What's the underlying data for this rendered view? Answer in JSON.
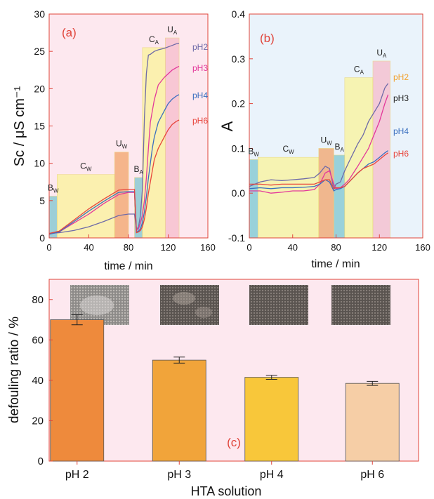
{
  "colors": {
    "panel_a_bg": "#fde8ef",
    "panel_b_bg": "#eaf3fb",
    "panel_c_bg": "#fde8ef",
    "frame": "#e0443a",
    "panel_label": "#e0443a",
    "stage_bw": "#7ec6cf",
    "stage_cw": "#fbf39a",
    "stage_uw": "#f3a46a",
    "stage_ba": "#7ec6cf",
    "stage_ca": "#fbf39a",
    "stage_ua": "#f7bccb",
    "ph2": "#6e6aa8",
    "ph3": "#e3389a",
    "ph4": "#3a6fbf",
    "ph6": "#e8453c",
    "ph2_label_b": "#f2a12e",
    "bar_ph2": "#ee8a3c",
    "bar_ph3": "#f1a43a",
    "bar_ph4": "#f8c73a",
    "bar_ph6": "#f6cea6"
  },
  "chart_data": [
    {
      "panel": "(a)",
      "type": "line",
      "ylabel": "Sc / μS cm⁻¹",
      "xlabel": "time / min",
      "xlim": [
        0,
        160
      ],
      "ylim": [
        0,
        30
      ],
      "xticks": [
        "0",
        "40",
        "80",
        "120",
        "160"
      ],
      "yticks": [
        "0",
        "5",
        "10",
        "15",
        "20",
        "25",
        "30"
      ],
      "stages": [
        {
          "label": "BW",
          "base": "B",
          "sub": "W",
          "x": [
            0,
            8
          ],
          "top": 5.6
        },
        {
          "label": "CW",
          "base": "C",
          "sub": "W",
          "x": [
            8,
            66
          ],
          "top": 8.5
        },
        {
          "label": "UW",
          "base": "U",
          "sub": "W",
          "x": [
            66,
            80
          ],
          "top": 11.5
        },
        {
          "label": "BA",
          "base": "B",
          "sub": "A",
          "x": [
            86,
            94
          ],
          "top": 8.1
        },
        {
          "label": "CA",
          "base": "C",
          "sub": "A",
          "x": [
            94,
            117
          ],
          "top": 25.5
        },
        {
          "label": "UA",
          "base": "U",
          "sub": "A",
          "x": [
            117,
            131
          ],
          "top": 26.8
        }
      ],
      "series": [
        {
          "name": "pH2",
          "x": [
            0,
            10,
            25,
            40,
            55,
            70,
            80,
            86,
            88,
            90,
            92,
            94,
            96,
            98,
            100,
            102,
            104,
            106,
            110,
            116,
            120,
            124,
            128,
            131
          ],
          "values": [
            0.6,
            0.7,
            1.0,
            1.5,
            2.2,
            3.0,
            3.2,
            3.2,
            1.2,
            1.4,
            3.0,
            6.5,
            16.0,
            22.0,
            24.5,
            24.6,
            24.8,
            25.0,
            25.2,
            25.4,
            25.6,
            25.8,
            26.0,
            26.1
          ]
        },
        {
          "name": "pH3",
          "x": [
            0,
            10,
            25,
            40,
            55,
            70,
            80,
            86,
            88,
            90,
            92,
            94,
            96,
            98,
            100,
            102,
            104,
            106,
            110,
            116,
            120,
            124,
            128,
            131
          ],
          "values": [
            0.5,
            0.8,
            2.0,
            3.2,
            4.6,
            5.8,
            6.1,
            6.1,
            1.0,
            1.2,
            2.0,
            3.0,
            5.0,
            8.0,
            12.0,
            15.5,
            17.0,
            18.5,
            20.5,
            21.5,
            22.0,
            22.5,
            22.8,
            23.0
          ]
        },
        {
          "name": "pH4",
          "x": [
            0,
            10,
            25,
            40,
            55,
            70,
            80,
            86,
            88,
            90,
            92,
            94,
            96,
            98,
            100,
            102,
            104,
            106,
            110,
            116,
            120,
            124,
            128,
            131
          ],
          "values": [
            0.5,
            0.8,
            2.2,
            3.6,
            4.9,
            6.1,
            6.2,
            6.2,
            0.8,
            0.9,
            1.2,
            2.0,
            3.5,
            5.5,
            8.0,
            10.0,
            12.0,
            13.5,
            15.5,
            17.0,
            18.0,
            18.6,
            19.0,
            19.2
          ]
        },
        {
          "name": "pH6",
          "x": [
            0,
            10,
            25,
            40,
            55,
            70,
            80,
            86,
            88,
            90,
            92,
            94,
            96,
            98,
            100,
            102,
            104,
            106,
            110,
            116,
            120,
            124,
            128,
            131
          ],
          "values": [
            0.6,
            0.9,
            2.4,
            3.9,
            5.2,
            6.4,
            6.5,
            6.5,
            0.7,
            0.8,
            1.0,
            1.5,
            2.5,
            4.0,
            6.0,
            7.5,
            9.0,
            10.5,
            12.0,
            13.5,
            14.5,
            15.2,
            15.6,
            15.8
          ]
        }
      ]
    },
    {
      "panel": "(b)",
      "type": "line",
      "ylabel": "A",
      "xlabel": "time / min",
      "xlim": [
        0,
        160
      ],
      "ylim": [
        -0.1,
        0.4
      ],
      "xticks": [
        "0",
        "40",
        "80",
        "120",
        "160"
      ],
      "yticks": [
        "-0.1",
        "0.0",
        "0.1",
        "0.2",
        "0.3",
        "0.4"
      ],
      "stages": [
        {
          "label": "BW",
          "base": "B",
          "sub": "W",
          "x": [
            0,
            8
          ],
          "top": 0.075
        },
        {
          "label": "CW",
          "base": "C",
          "sub": "W",
          "x": [
            8,
            64
          ],
          "top": 0.08
        },
        {
          "label": "UW",
          "base": "U",
          "sub": "W",
          "x": [
            64,
            78
          ],
          "top": 0.1
        },
        {
          "label": "BA",
          "base": "B",
          "sub": "A",
          "x": [
            78,
            88
          ],
          "top": 0.085
        },
        {
          "label": "CA",
          "base": "C",
          "sub": "A",
          "x": [
            88,
            114
          ],
          "top": 0.258
        },
        {
          "label": "UA",
          "base": "U",
          "sub": "A",
          "x": [
            114,
            130
          ],
          "top": 0.295
        }
      ],
      "series": [
        {
          "name": "pH2",
          "x": [
            0,
            10,
            20,
            30,
            40,
            50,
            60,
            65,
            70,
            74,
            78,
            80,
            84,
            88,
            92,
            96,
            100,
            105,
            110,
            115,
            120,
            125,
            128
          ],
          "values": [
            0.015,
            0.025,
            0.03,
            0.028,
            0.03,
            0.032,
            0.035,
            0.045,
            0.06,
            0.055,
            0.01,
            0.02,
            0.025,
            0.05,
            0.07,
            0.09,
            0.11,
            0.13,
            0.16,
            0.18,
            0.2,
            0.235,
            0.245
          ]
        },
        {
          "name": "pH3",
          "x": [
            0,
            10,
            20,
            30,
            40,
            50,
            60,
            65,
            70,
            74,
            78,
            80,
            84,
            88,
            92,
            96,
            100,
            105,
            110,
            115,
            120,
            125,
            128
          ],
          "values": [
            0.005,
            0.005,
            0.0,
            0.002,
            0.005,
            0.005,
            0.008,
            0.02,
            0.045,
            0.05,
            0.02,
            0.01,
            0.012,
            0.02,
            0.03,
            0.045,
            0.06,
            0.08,
            0.1,
            0.13,
            0.16,
            0.2,
            0.22
          ]
        },
        {
          "name": "pH4",
          "x": [
            0,
            10,
            20,
            30,
            40,
            50,
            60,
            65,
            70,
            74,
            78,
            80,
            84,
            88,
            92,
            96,
            100,
            105,
            110,
            115,
            120,
            125,
            128
          ],
          "values": [
            0.01,
            0.012,
            0.01,
            0.012,
            0.012,
            0.013,
            0.015,
            0.02,
            0.03,
            0.025,
            0.005,
            0.008,
            0.01,
            0.015,
            0.025,
            0.035,
            0.045,
            0.055,
            0.065,
            0.07,
            0.08,
            0.09,
            0.095
          ]
        },
        {
          "name": "pH6",
          "x": [
            0,
            10,
            20,
            30,
            40,
            50,
            60,
            65,
            70,
            74,
            78,
            80,
            84,
            88,
            92,
            96,
            100,
            105,
            110,
            115,
            120,
            125,
            128
          ],
          "values": [
            0.02,
            0.02,
            0.018,
            0.02,
            0.02,
            0.02,
            0.02,
            0.025,
            0.03,
            0.03,
            0.01,
            0.012,
            0.012,
            0.015,
            0.025,
            0.035,
            0.045,
            0.055,
            0.06,
            0.065,
            0.075,
            0.085,
            0.09
          ]
        }
      ]
    },
    {
      "panel": "(c)",
      "type": "bar",
      "xlabel": "HTA solution",
      "ylabel": "defouling ratio / %",
      "ylim": [
        0,
        90
      ],
      "yticks": [
        "0",
        "20",
        "40",
        "60",
        "80"
      ],
      "categories": [
        "pH 2",
        "pH 3",
        "pH 4",
        "pH 6"
      ],
      "values": [
        70,
        50,
        41.5,
        38.5
      ],
      "errors": [
        2.5,
        1.5,
        1.0,
        1.0
      ],
      "grid": false
    }
  ]
}
